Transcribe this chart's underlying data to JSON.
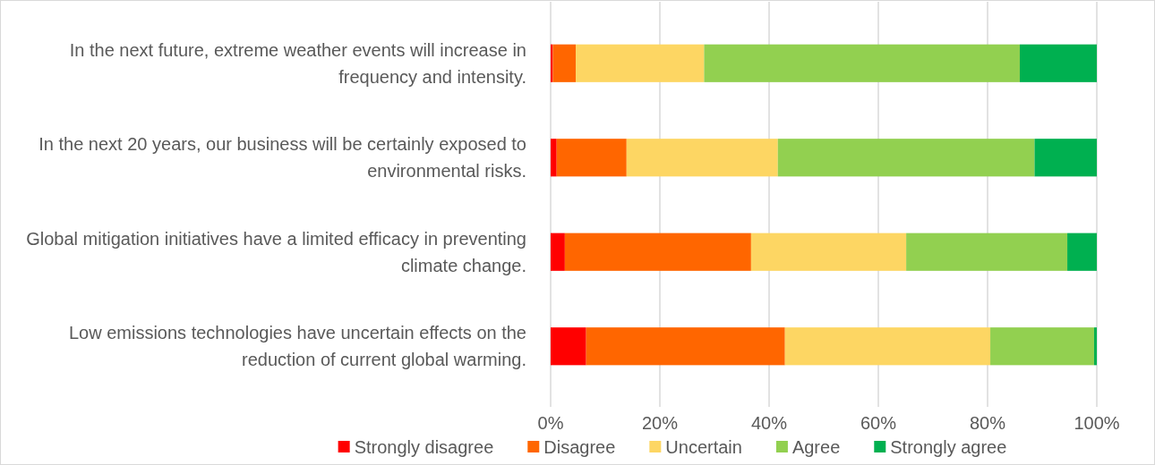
{
  "chart_data": {
    "type": "bar",
    "orientation": "horizontal",
    "stacked": true,
    "categories": [
      "In the next future, extreme weather events will increase in frequency and intensity.",
      "In the next 20 years, our business will be certainly exposed to environmental risks.",
      "Global mitigation initiatives have a limited efficacy in preventing climate change.",
      "Low emissions technologies have uncertain effects on the reduction of current global warming."
    ],
    "series": [
      {
        "name": "Strongly disagree",
        "color": "#ff0000",
        "values": [
          0.4,
          1.1,
          2.6,
          6.5
        ]
      },
      {
        "name": "Disagree",
        "color": "#ff6600",
        "values": [
          4.2,
          12.8,
          34.1,
          36.4
        ]
      },
      {
        "name": "Uncertain",
        "color": "#fdd663",
        "values": [
          23.5,
          27.7,
          28.4,
          37.6
        ]
      },
      {
        "name": "Agree",
        "color": "#92d050",
        "values": [
          57.8,
          47.0,
          29.5,
          19.0
        ]
      },
      {
        "name": "Strongly agree",
        "color": "#00b050",
        "values": [
          14.1,
          11.4,
          5.4,
          0.5
        ]
      }
    ],
    "xlim": [
      0,
      100
    ],
    "xticks": [
      {
        "value": 0,
        "label": "0%"
      },
      {
        "value": 20,
        "label": "20%"
      },
      {
        "value": 40,
        "label": "40%"
      },
      {
        "value": 60,
        "label": "60%"
      },
      {
        "value": 80,
        "label": "80%"
      },
      {
        "value": 100,
        "label": "100%"
      }
    ],
    "grid": "x",
    "legend": "bottom"
  }
}
